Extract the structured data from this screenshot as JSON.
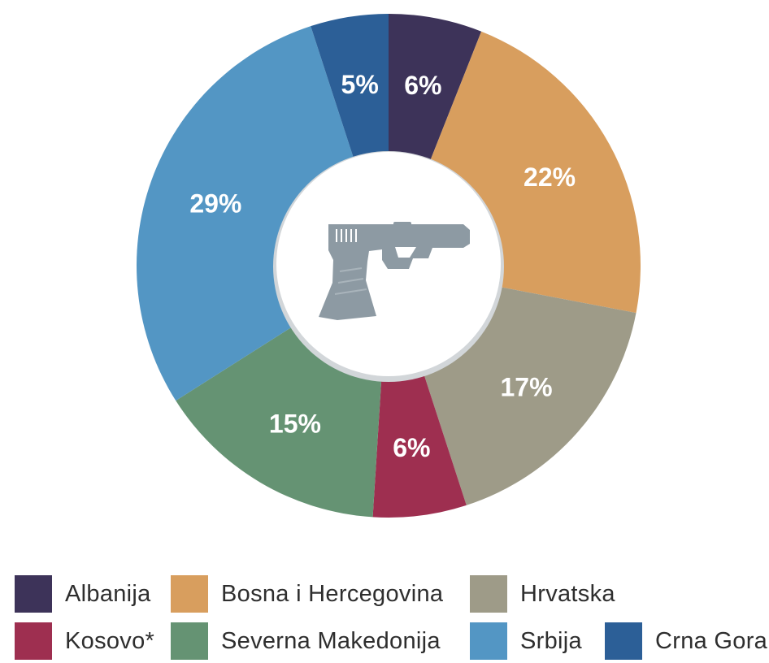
{
  "chart_data": {
    "type": "pie",
    "variant": "donut",
    "center_icon": "pistol-icon",
    "slices": [
      {
        "name": "Albanija",
        "value": 6,
        "label": "6%",
        "color": "#3d3359"
      },
      {
        "name": "Bosna i Hercegovina",
        "value": 22,
        "label": "22%",
        "color": "#d89e5e"
      },
      {
        "name": "Hrvatska",
        "value": 17,
        "label": "17%",
        "color": "#9e9b88"
      },
      {
        "name": "Kosovo*",
        "value": 6,
        "label": "6%",
        "color": "#9e2f50"
      },
      {
        "name": "Severna Makedonija",
        "value": 15,
        "label": "15%",
        "color": "#659373"
      },
      {
        "name": "Srbija",
        "value": 29,
        "label": "29%",
        "color": "#5396c4"
      },
      {
        "name": "Crna Gora",
        "value": 5,
        "label": "5%",
        "color": "#2c5f97"
      }
    ],
    "legend": [
      "Albanija",
      "Bosna i Hercegovina",
      "Hrvatska",
      "Kosovo*",
      "Severna Makedonija",
      "Srbija",
      "Crna Gora"
    ],
    "legend_position": "bottom",
    "colors": {
      "center_fill": "#ffffff",
      "icon": "#8d9aa3",
      "inner_shadow": "#d2d6d9"
    }
  }
}
